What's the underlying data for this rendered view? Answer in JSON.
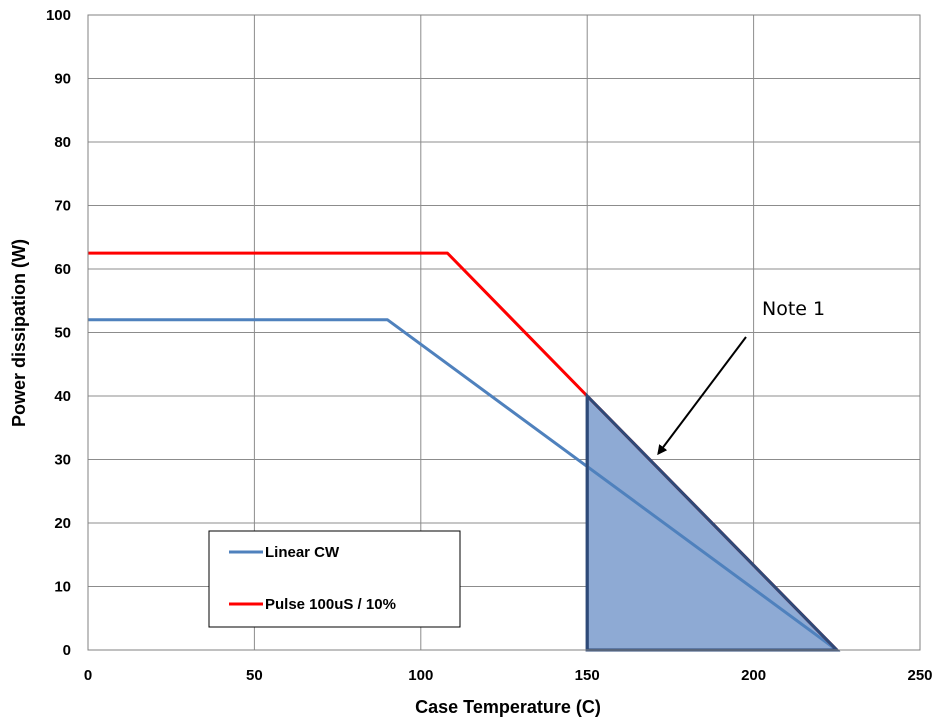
{
  "chart_data": {
    "type": "line",
    "xlabel": "Case Temperature (C)",
    "ylabel": "Power  dissipation (W)",
    "xlim": [
      0,
      250
    ],
    "ylim": [
      0,
      100
    ],
    "x_ticks": [
      "0",
      "50",
      "100",
      "150",
      "200",
      "250"
    ],
    "y_ticks": [
      "0",
      "10",
      "20",
      "30",
      "40",
      "50",
      "60",
      "70",
      "80",
      "90",
      "100"
    ],
    "grid": true,
    "legend_position": "bottom-left",
    "series": [
      {
        "name": "Linear CW",
        "color": "#4f81bd",
        "points": [
          [
            0,
            52
          ],
          [
            90,
            52
          ],
          [
            225,
            0
          ]
        ]
      },
      {
        "name": "Pulse 100uS / 10%",
        "color": "#ff0000",
        "points": [
          [
            0,
            62.5
          ],
          [
            108,
            62.5
          ],
          [
            150,
            40
          ],
          [
            225,
            0
          ]
        ]
      }
    ],
    "shaded_region": {
      "fill": "#8eaad4",
      "stroke": "#2e4a78",
      "points": [
        [
          150,
          40
        ],
        [
          225,
          0
        ],
        [
          150,
          0
        ]
      ]
    },
    "annotation": {
      "text": "Note 1",
      "target": [
        172,
        30
      ]
    }
  }
}
